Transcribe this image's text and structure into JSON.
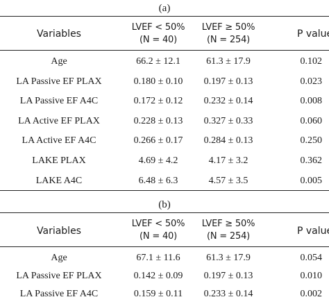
{
  "panel_a": {
    "label": "(a)",
    "headers": {
      "variables": "Variables",
      "group1_line1": "LVEF < 50%",
      "group1_line2": "(N = 40)",
      "group2_line1": "LVEF ≥ 50%",
      "group2_line2": "(N = 254)",
      "pvalue": "P value"
    },
    "rows": [
      {
        "variable": "Age",
        "g1": "66.2 ± 12.1",
        "g2": "61.3 ± 17.9",
        "p": "0.102"
      },
      {
        "variable": "LA Passive EF PLAX",
        "g1": "0.180 ± 0.10",
        "g2": "0.197 ± 0.13",
        "p": "0.023"
      },
      {
        "variable": "LA Passive EF A4C",
        "g1": "0.172 ± 0.12",
        "g2": "0.232 ± 0.14",
        "p": "0.008"
      },
      {
        "variable": "LA Active EF PLAX",
        "g1": "0.228 ± 0.13",
        "g2": "0.327 ± 0.33",
        "p": "0.060"
      },
      {
        "variable": "LA Active EF A4C",
        "g1": "0.266 ± 0.17",
        "g2": "0.284 ± 0.13",
        "p": "0.250"
      },
      {
        "variable": "LAKE PLAX",
        "g1": "4.69 ± 4.2",
        "g2": "4.17 ± 3.2",
        "p": "0.362"
      },
      {
        "variable": "LAKE A4C",
        "g1": "6.48 ± 6.3",
        "g2": "4.57 ± 3.5",
        "p": "0.005"
      }
    ]
  },
  "panel_b": {
    "label": "(b)",
    "headers": {
      "variables": "Variables",
      "group1_line1": "LVEF < 50%",
      "group1_line2": "(N = 40)",
      "group2_line1": "LVEF ≥ 50%",
      "group2_line2": "(N = 254)",
      "pvalue": "P value"
    },
    "rows": [
      {
        "variable": "Age",
        "g1": "67.1 ± 11.6",
        "g2": "61.3 ± 17.9",
        "p": "0.054"
      },
      {
        "variable": "LA Passive EF PLAX",
        "g1": "0.142 ± 0.09",
        "g2": "0.197 ± 0.13",
        "p": "0.010"
      },
      {
        "variable": "LA Passive EF A4C",
        "g1": "0.159 ± 0.11",
        "g2": "0.233 ± 0.14",
        "p": "0.002"
      }
    ]
  }
}
